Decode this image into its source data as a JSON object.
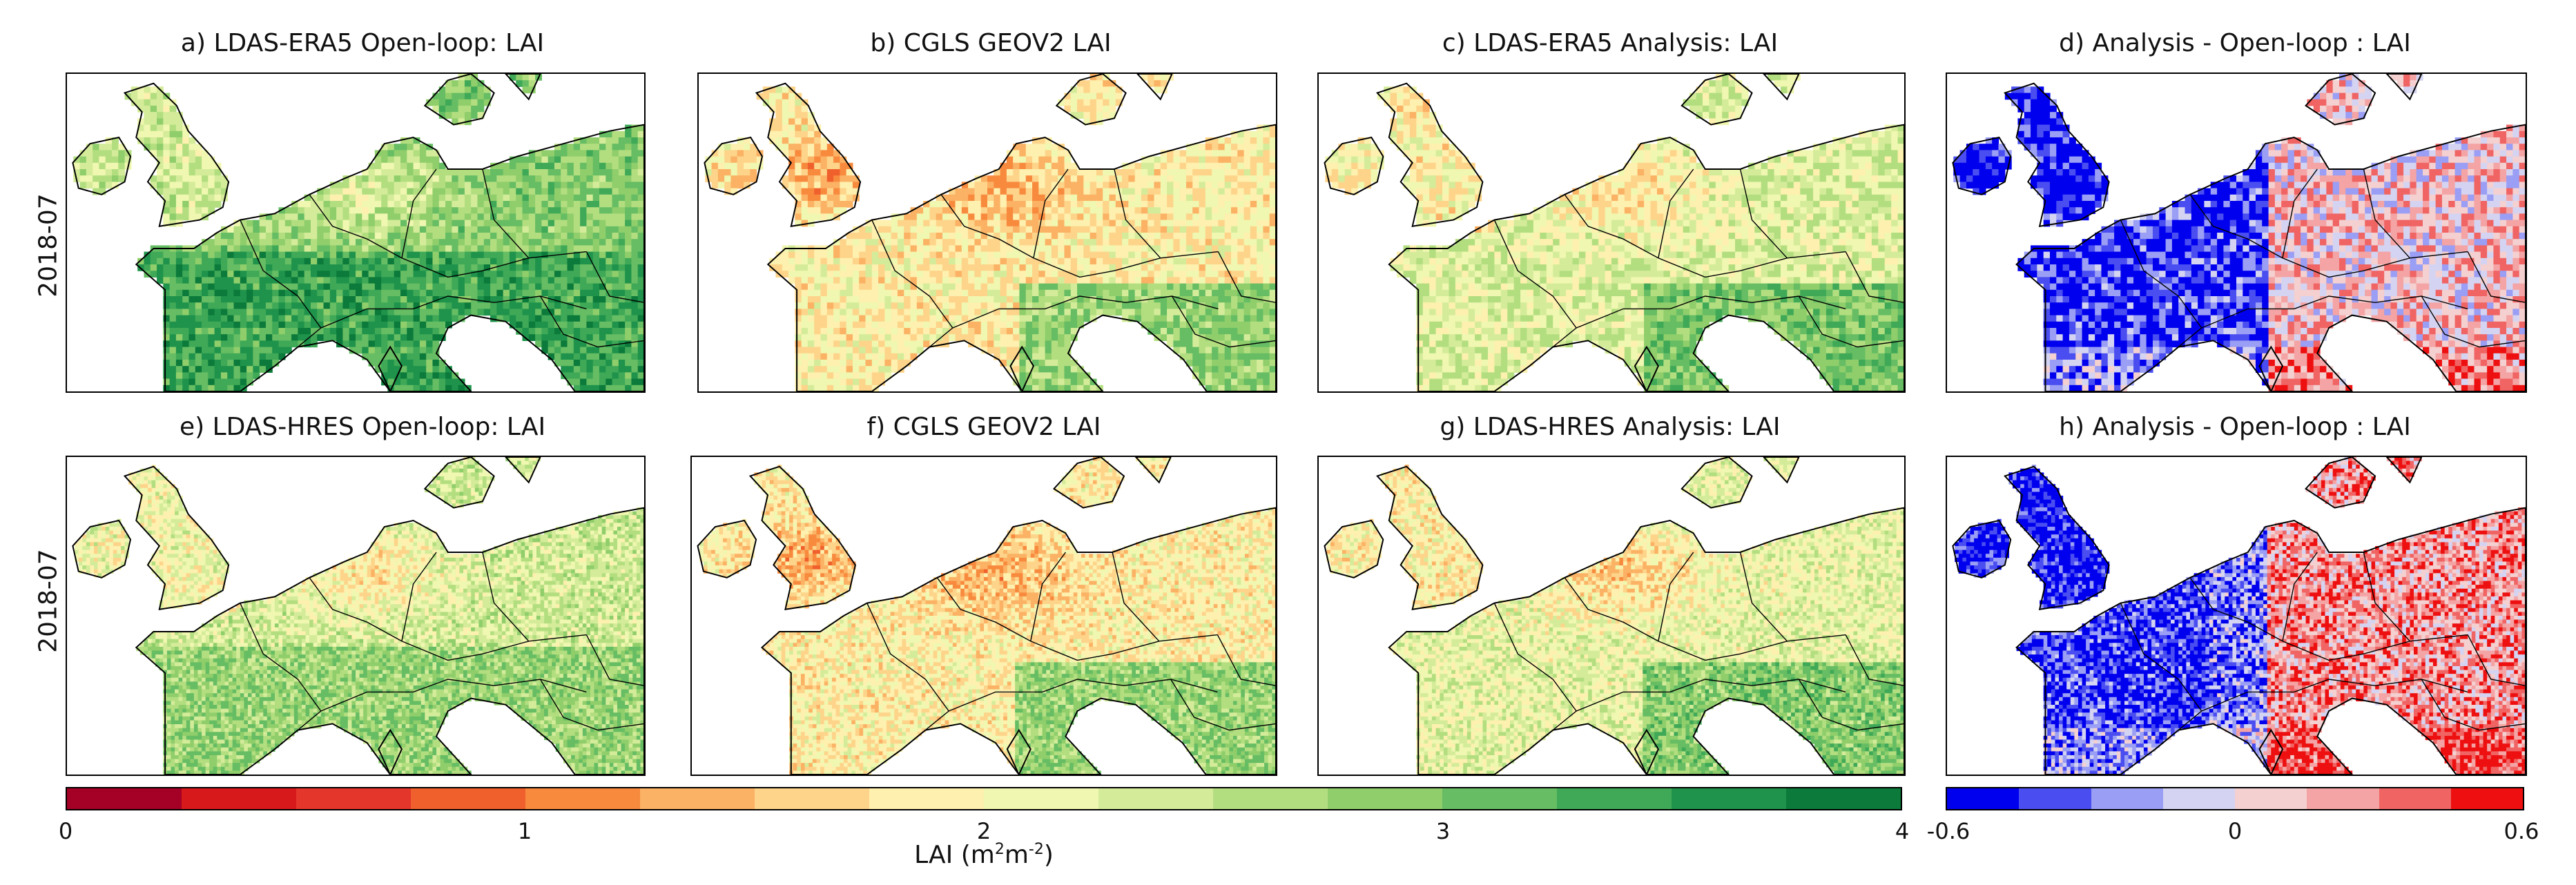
{
  "figure": {
    "row_labels": [
      "2018-07",
      "2018-07"
    ],
    "panels": [
      {
        "title": "a) LDAS-ERA5 Open-loop: LAI",
        "kind": "lai",
        "variant": "era_ol"
      },
      {
        "title": "b) CGLS GEOV2 LAI",
        "kind": "lai",
        "variant": "obs"
      },
      {
        "title": "c) LDAS-ERA5 Analysis: LAI",
        "kind": "lai",
        "variant": "era_an"
      },
      {
        "title": "d) Analysis - Open-loop : LAI",
        "kind": "diff",
        "variant": "era_diff"
      },
      {
        "title": "e) LDAS-HRES Open-loop: LAI",
        "kind": "lai",
        "variant": "hres_ol"
      },
      {
        "title": "f) CGLS GEOV2 LAI",
        "kind": "lai",
        "variant": "obs_hr"
      },
      {
        "title": "g) LDAS-HRES Analysis: LAI",
        "kind": "lai",
        "variant": "hres_an"
      },
      {
        "title": "h) Analysis - Open-loop : LAI",
        "kind": "diff",
        "variant": "hres_diff"
      }
    ],
    "colorbar_lai": {
      "label_prefix": "LAI (m",
      "label_sup1": "2",
      "label_mid": "m",
      "label_sup2": "-2",
      "label_suffix": ")",
      "ticks": [
        "0",
        "1",
        "2",
        "3",
        "4"
      ],
      "range": [
        0,
        4
      ],
      "colors": [
        "#a50026",
        "#d7191c",
        "#e4362b",
        "#f0602c",
        "#f88a3e",
        "#fbb264",
        "#fdd48a",
        "#fef0ae",
        "#f0f7b0",
        "#d4ec9a",
        "#b3de80",
        "#8fce6b",
        "#66bd63",
        "#3fa957",
        "#1f934b",
        "#0b7a3a"
      ]
    },
    "colorbar_diff": {
      "ticks": [
        "-0.6",
        "0",
        "0.6"
      ],
      "range": [
        -0.6,
        0.6
      ],
      "colors": [
        "#0000ee",
        "#4a4ef0",
        "#9a9ef4",
        "#d4d4f2",
        "#f4d0d0",
        "#f4a4a4",
        "#f06464",
        "#ee1010"
      ]
    }
  }
}
